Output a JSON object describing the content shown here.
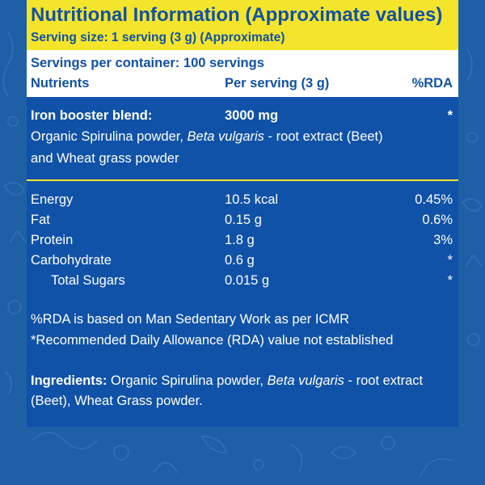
{
  "header": {
    "title": "Nutritional Information (Approximate values)",
    "serving_size": "Serving size: 1 serving (3 g) (Approximate)"
  },
  "meta": {
    "servings_per_container": "Servings per container: 100 servings",
    "col_nutrients": "Nutrients",
    "col_per_serving": "Per serving (3 g)",
    "col_rda": "%RDA"
  },
  "blend": {
    "name": "Iron booster blend:",
    "amount": "3000 mg",
    "rda": "*",
    "desc_part1": "Organic Spirulina powder, ",
    "desc_italic": "Beta vulgaris",
    "desc_part2": " - root extract (Beet)",
    "desc_line2": "and Wheat grass powder"
  },
  "nutrients": [
    {
      "name": "Energy",
      "value": "10.5 kcal",
      "rda": "0.45%"
    },
    {
      "name": "Fat",
      "value": "0.15 g",
      "rda": "0.6%"
    },
    {
      "name": "Protein",
      "value": "1.8 g",
      "rda": "3%"
    },
    {
      "name": "Carbohydrate",
      "value": "0.6 g",
      "rda": "*"
    },
    {
      "name": "Total Sugars",
      "value": "0.015 g",
      "rda": "*"
    }
  ],
  "notes": {
    "line1": "%RDA is based on Man Sedentary Work as per ICMR",
    "line2": "*Recommended Daily Allowance (RDA) value not established"
  },
  "ingredients": {
    "label": "Ingredients:",
    "part1": " Organic Spirulina powder, ",
    "italic": "Beta vulgaris",
    "part2": " - root extract",
    "line2": "(Beet), Wheat Grass powder."
  },
  "colors": {
    "background": "#1f5fa6",
    "panel": "#1052a8",
    "header_yellow": "#f4e52c",
    "header_text": "#1251a4",
    "text": "#ffffff"
  }
}
